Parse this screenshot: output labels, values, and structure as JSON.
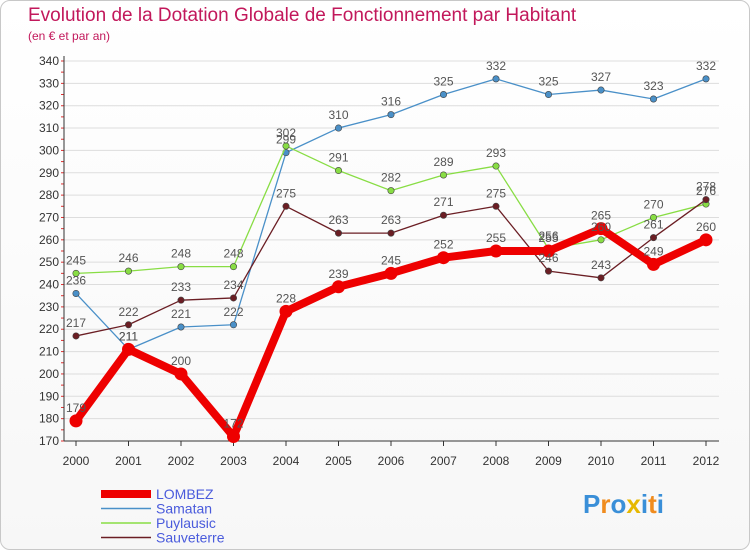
{
  "chart_data": {
    "type": "line",
    "title": "Evolution de la Dotation Globale de Fonctionnement par Habitant",
    "subtitle": "(en € et par an)",
    "xlabel": "",
    "ylabel": "",
    "categories": [
      "2000",
      "2001",
      "2002",
      "2003",
      "2004",
      "2005",
      "2006",
      "2007",
      "2008",
      "2009",
      "2010",
      "2011",
      "2012"
    ],
    "ylim": [
      170,
      340
    ],
    "yticks": [
      170,
      180,
      190,
      200,
      210,
      220,
      230,
      240,
      250,
      260,
      270,
      280,
      290,
      300,
      310,
      320,
      330,
      340
    ],
    "grid": true,
    "legend": "bottom-left",
    "series": [
      {
        "name": "LOMBEZ",
        "color": "#ee0000",
        "values": [
          179,
          211,
          200,
          172,
          228,
          239,
          245,
          252,
          255,
          255,
          265,
          249,
          260
        ]
      },
      {
        "name": "Samatan",
        "color": "#4a90c8",
        "values": [
          236,
          211,
          221,
          222,
          299,
          310,
          316,
          325,
          332,
          325,
          327,
          323,
          332
        ]
      },
      {
        "name": "Puylausic",
        "color": "#88dd44",
        "values": [
          245,
          246,
          248,
          248,
          302,
          291,
          282,
          289,
          293,
          256,
          260,
          270,
          276
        ]
      },
      {
        "name": "Sauveterre",
        "color": "#6b1e24",
        "values": [
          217,
          222,
          233,
          234,
          275,
          263,
          263,
          271,
          275,
          246,
          243,
          261,
          278
        ]
      }
    ]
  },
  "logo": {
    "text": "Proxiti",
    "letters": [
      "P",
      "r",
      "o",
      "x",
      "i",
      "t",
      "i"
    ],
    "colors": [
      "#3a8fd8",
      "#f08c1e",
      "#3a8fd8",
      "#e6b800",
      "#3a8fd8",
      "#f08c1e",
      "#3a8fd8"
    ]
  }
}
